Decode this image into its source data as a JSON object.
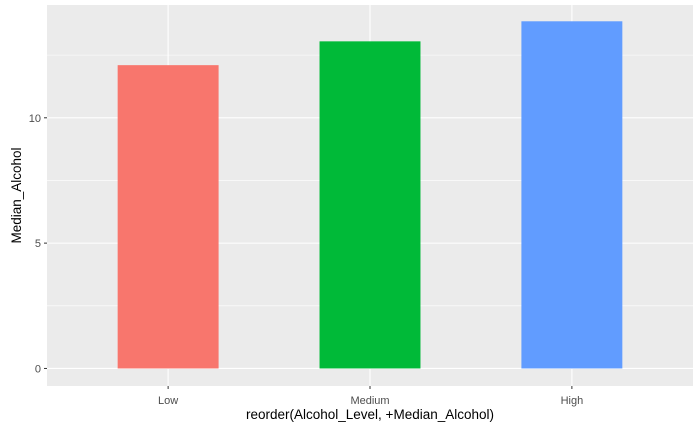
{
  "chart_data": {
    "type": "bar",
    "categories": [
      "Low",
      "Medium",
      "High"
    ],
    "values": [
      12.1,
      13.05,
      13.85
    ],
    "colors": [
      "#F8766D",
      "#00BA38",
      "#619CFF"
    ],
    "xlabel": "reorder(Alcohol_Level, +Median_Alcohol)",
    "ylabel": "Median_Alcohol",
    "yticks": [
      0,
      5,
      10
    ],
    "ylim": [
      -0.7,
      14.5
    ],
    "grid": true,
    "legend": "none",
    "panel_background": "#EBEBEB",
    "grid_color": "#FFFFFF"
  }
}
